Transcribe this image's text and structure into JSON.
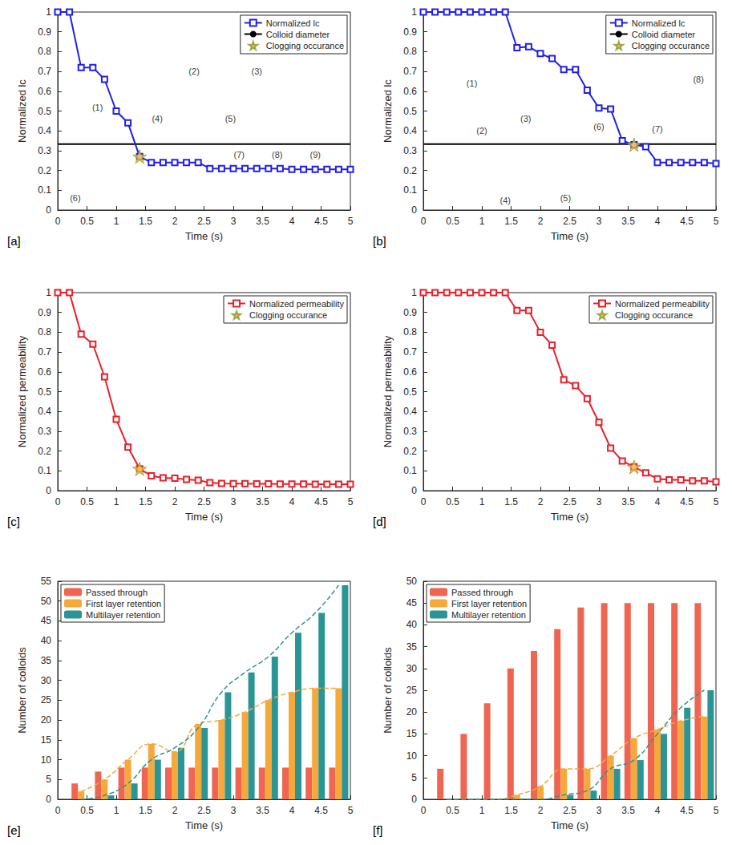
{
  "chart_data": [
    {
      "type": "line",
      "panel_label": "[a]",
      "x_label": "Time (s)",
      "y_label": "Normalized lc",
      "x": [
        0,
        0.2,
        0.4,
        0.6,
        0.8,
        1,
        1.2,
        1.4,
        1.6,
        1.8,
        2,
        2.2,
        2.4,
        2.6,
        2.8,
        3,
        3.2,
        3.4,
        3.6,
        3.8,
        4,
        4.2,
        4.4,
        4.6,
        4.8,
        5
      ],
      "series": [
        {
          "name": "Normalized lc",
          "color": "#2020e8",
          "marker": "square",
          "values": [
            1,
            1,
            0.72,
            0.72,
            0.66,
            0.5,
            0.44,
            0.27,
            0.24,
            0.24,
            0.24,
            0.24,
            0.24,
            0.21,
            0.21,
            0.21,
            0.21,
            0.21,
            0.21,
            0.21,
            0.205,
            0.205,
            0.205,
            0.205,
            0.205,
            0.205
          ]
        }
      ],
      "reference_line": {
        "name": "Colloid diameter",
        "color": "#000000",
        "value": 0.333
      },
      "highlight": {
        "name": "Clogging occurance",
        "color": "#e9b43c",
        "marker": "star",
        "x": 1.4,
        "y": 0.27
      },
      "annotations": [
        {
          "text": "(1)",
          "x": 0.68,
          "y": 0.52
        },
        {
          "text": "(2)",
          "x": 2.33,
          "y": 0.7
        },
        {
          "text": "(3)",
          "x": 3.4,
          "y": 0.7
        },
        {
          "text": "(4)",
          "x": 1.7,
          "y": 0.46
        },
        {
          "text": "(5)",
          "x": 2.95,
          "y": 0.46
        },
        {
          "text": "(6)",
          "x": 0.3,
          "y": 0.06
        },
        {
          "text": "(7)",
          "x": 3.1,
          "y": 0.28
        },
        {
          "text": "(8)",
          "x": 3.75,
          "y": 0.28
        },
        {
          "text": "(9)",
          "x": 4.4,
          "y": 0.28
        }
      ],
      "xlim": [
        0,
        5
      ],
      "xticks": [
        0,
        0.5,
        1,
        1.5,
        2,
        2.5,
        3,
        3.5,
        4,
        4.5,
        5
      ],
      "ylim": [
        0,
        1
      ],
      "yticks": [
        0,
        0.1,
        0.2,
        0.3,
        0.4,
        0.5,
        0.6,
        0.7,
        0.8,
        0.9,
        1
      ],
      "legend": "upper right",
      "grid": false
    },
    {
      "type": "line",
      "panel_label": "[b]",
      "x_label": "Time (s)",
      "y_label": "Normalized lc",
      "x": [
        0,
        0.2,
        0.4,
        0.6,
        0.8,
        1,
        1.2,
        1.4,
        1.6,
        1.8,
        2,
        2.2,
        2.4,
        2.6,
        2.8,
        3,
        3.2,
        3.4,
        3.6,
        3.8,
        4,
        4.2,
        4.4,
        4.6,
        4.8,
        5
      ],
      "series": [
        {
          "name": "Normalized lc",
          "color": "#2020e8",
          "marker": "square",
          "values": [
            1,
            1,
            1,
            1,
            1,
            1,
            1,
            1,
            0.82,
            0.825,
            0.79,
            0.765,
            0.71,
            0.71,
            0.605,
            0.515,
            0.51,
            0.35,
            0.33,
            0.32,
            0.24,
            0.24,
            0.24,
            0.24,
            0.24,
            0.235
          ]
        }
      ],
      "reference_line": {
        "name": "Colloid diameter",
        "color": "#000000",
        "value": 0.333
      },
      "highlight": {
        "name": "Clogging occurance",
        "color": "#e9b43c",
        "marker": "star",
        "x": 3.6,
        "y": 0.33
      },
      "annotations": [
        {
          "text": "(1)",
          "x": 0.83,
          "y": 0.64
        },
        {
          "text": "(2)",
          "x": 1.0,
          "y": 0.4
        },
        {
          "text": "(3)",
          "x": 1.75,
          "y": 0.46
        },
        {
          "text": "(4)",
          "x": 1.4,
          "y": 0.05
        },
        {
          "text": "(5)",
          "x": 2.43,
          "y": 0.06
        },
        {
          "text": "(6)",
          "x": 3.0,
          "y": 0.42
        },
        {
          "text": "(7)",
          "x": 4.0,
          "y": 0.41
        },
        {
          "text": "(8)",
          "x": 4.7,
          "y": 0.66
        }
      ],
      "xlim": [
        0,
        5
      ],
      "xticks": [
        0,
        0.5,
        1,
        1.5,
        2,
        2.5,
        3,
        3.5,
        4,
        4.5,
        5
      ],
      "ylim": [
        0,
        1
      ],
      "yticks": [
        0,
        0.1,
        0.2,
        0.3,
        0.4,
        0.5,
        0.6,
        0.7,
        0.8,
        0.9,
        1
      ],
      "legend": "upper right",
      "grid": false
    },
    {
      "type": "line",
      "panel_label": "[c]",
      "x_label": "Time (s)",
      "y_label": "Normalized permeability",
      "x": [
        0,
        0.2,
        0.4,
        0.6,
        0.8,
        1,
        1.2,
        1.4,
        1.6,
        1.8,
        2,
        2.2,
        2.4,
        2.6,
        2.8,
        3,
        3.2,
        3.4,
        3.6,
        3.8,
        4,
        4.2,
        4.4,
        4.6,
        4.8,
        5
      ],
      "series": [
        {
          "name": "Normalized permeability",
          "color": "#e8202a",
          "marker": "square",
          "values": [
            1,
            1,
            0.79,
            0.74,
            0.575,
            0.36,
            0.22,
            0.11,
            0.075,
            0.065,
            0.063,
            0.057,
            0.053,
            0.04,
            0.036,
            0.035,
            0.035,
            0.034,
            0.034,
            0.033,
            0.033,
            0.033,
            0.032,
            0.032,
            0.032,
            0.032
          ]
        }
      ],
      "highlight": {
        "name": "Clogging occurance",
        "color": "#e9b43c",
        "marker": "star",
        "x": 1.4,
        "y": 0.11
      },
      "xlim": [
        0,
        5
      ],
      "xticks": [
        0,
        0.5,
        1,
        1.5,
        2,
        2.5,
        3,
        3.5,
        4,
        4.5,
        5
      ],
      "ylim": [
        0,
        1
      ],
      "yticks": [
        0,
        0.1,
        0.2,
        0.3,
        0.4,
        0.5,
        0.6,
        0.7,
        0.8,
        0.9,
        1
      ],
      "legend": "upper right",
      "grid": false
    },
    {
      "type": "line",
      "panel_label": "[d]",
      "x_label": "Time (s)",
      "y_label": "Normalized permeability",
      "x": [
        0,
        0.2,
        0.4,
        0.6,
        0.8,
        1,
        1.2,
        1.4,
        1.6,
        1.8,
        2,
        2.2,
        2.4,
        2.6,
        2.8,
        3,
        3.2,
        3.4,
        3.6,
        3.8,
        4,
        4.2,
        4.4,
        4.6,
        4.8,
        5
      ],
      "series": [
        {
          "name": "Normalized permeability",
          "color": "#e8202a",
          "marker": "square",
          "values": [
            1,
            1,
            1,
            1,
            1,
            1,
            1,
            1,
            0.91,
            0.91,
            0.8,
            0.735,
            0.56,
            0.53,
            0.465,
            0.345,
            0.215,
            0.15,
            0.12,
            0.09,
            0.06,
            0.055,
            0.055,
            0.05,
            0.05,
            0.045
          ]
        }
      ],
      "highlight": {
        "name": "Clogging occurance",
        "color": "#e9b43c",
        "marker": "star",
        "x": 3.6,
        "y": 0.12
      },
      "xlim": [
        0,
        5
      ],
      "xticks": [
        0,
        0.5,
        1,
        1.5,
        2,
        2.5,
        3,
        3.5,
        4,
        4.5,
        5
      ],
      "ylim": [
        0,
        1
      ],
      "yticks": [
        0,
        0.1,
        0.2,
        0.3,
        0.4,
        0.5,
        0.6,
        0.7,
        0.8,
        0.9,
        1
      ],
      "legend": "upper right",
      "grid": false
    },
    {
      "type": "bar",
      "panel_label": "[e]",
      "x_label": "Time (s)",
      "y_label": "Number of colloids",
      "x": [
        0.4,
        0.8,
        1.2,
        1.6,
        2,
        2.4,
        2.8,
        3.2,
        3.6,
        4,
        4.4,
        4.8
      ],
      "series": [
        {
          "name": "Passed through",
          "color": "#ef6552",
          "values": [
            4,
            7,
            8,
            8,
            8,
            8,
            8,
            8,
            8,
            8,
            8,
            8
          ]
        },
        {
          "name": "First layer retention",
          "color": "#f6a93b",
          "line_style": "dashed",
          "values": [
            2,
            5,
            10,
            14,
            12,
            19,
            20,
            22,
            25,
            27,
            28,
            28
          ]
        },
        {
          "name": "Multilayer retention",
          "color": "#2b9595",
          "line_style": "dashed",
          "values": [
            0,
            1,
            4,
            10,
            13,
            18,
            27,
            32,
            36,
            42,
            47,
            54
          ]
        }
      ],
      "xlim": [
        0,
        5
      ],
      "xticks": [
        0,
        0.5,
        1,
        1.5,
        2,
        2.5,
        3,
        3.5,
        4,
        4.5,
        5
      ],
      "ylim": [
        0,
        55
      ],
      "yticks": [
        0,
        5,
        10,
        15,
        20,
        25,
        30,
        35,
        40,
        45,
        50,
        55
      ],
      "legend": "upper left",
      "grid": false
    },
    {
      "type": "bar",
      "panel_label": "[f]",
      "x_label": "Time (s)",
      "y_label": "Number of colloids",
      "x": [
        0.4,
        0.8,
        1.2,
        1.6,
        2,
        2.4,
        2.8,
        3.2,
        3.6,
        4,
        4.4,
        4.8
      ],
      "series": [
        {
          "name": "Passed through",
          "color": "#ef6552",
          "values": [
            7,
            15,
            22,
            30,
            34,
            39,
            44,
            45,
            45,
            45,
            45,
            45
          ]
        },
        {
          "name": "First layer retention",
          "color": "#f6a93b",
          "line_style": "dashed",
          "values": [
            0,
            0,
            0,
            1,
            3,
            7,
            7,
            10,
            14,
            16,
            18,
            19
          ]
        },
        {
          "name": "Multilayer retention",
          "color": "#2b9595",
          "line_style": "dashed",
          "values": [
            0,
            0,
            0,
            0,
            0,
            1,
            2,
            7,
            9,
            15,
            21,
            25
          ]
        }
      ],
      "xlim": [
        0,
        5
      ],
      "xticks": [
        0,
        0.5,
        1,
        1.5,
        2,
        2.5,
        3,
        3.5,
        4,
        4.5,
        5
      ],
      "ylim": [
        0,
        50
      ],
      "yticks": [
        0,
        5,
        10,
        15,
        20,
        25,
        30,
        35,
        40,
        45,
        50
      ],
      "legend": "upper left",
      "grid": false
    }
  ]
}
